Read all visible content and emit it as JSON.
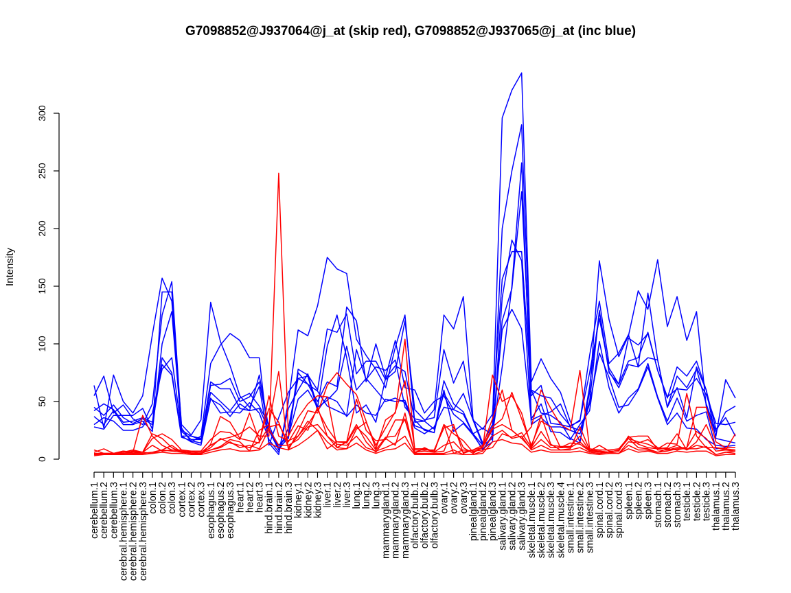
{
  "chart_data": {
    "type": "line",
    "title": "G7098852@J937064@j_at (skip red), G7098852@J937065@j_at (inc blue)",
    "xlabel": "",
    "ylabel": "Intensity",
    "ylim": [
      0,
      300
    ],
    "yticks": [
      0,
      50,
      100,
      150,
      200,
      250,
      300
    ],
    "grid": false,
    "legend": "none",
    "colors": {
      "skip": "#ff0000",
      "inc": "#0000ff"
    },
    "categories": [
      "cerebellum.1",
      "cerebellum.2",
      "cerebellum.3",
      "cerebral.hemisphere.1",
      "cerebral.hemisphere.2",
      "cerebral.hemisphere.3",
      "colon.1",
      "colon.2",
      "colon.3",
      "cortex.1",
      "cortex.2",
      "cortex.3",
      "esophagus.1",
      "esophagus.2",
      "esophagus.3",
      "heart.1",
      "heart.2",
      "heart.3",
      "hind.brain.1",
      "hind.brain.2",
      "hind.brain.3",
      "kidney.1",
      "kidney.2",
      "kidney.3",
      "liver.1",
      "liver.2",
      "liver.3",
      "lung.1",
      "lung.2",
      "lung.3",
      "mammarygland.1",
      "mammarygland.2",
      "mammarygland.3",
      "olfactory.bulb.1",
      "olfactory.bulb.2",
      "olfactory.bulb.3",
      "ovary.1",
      "ovary.2",
      "ovary.3",
      "pinealgland.1",
      "pinealgland.2",
      "pinealgland.3",
      "salivary.gland.1",
      "salivary.gland.2",
      "salivary.gland.3",
      "skeletal.muscle.1",
      "skeletal.muscle.2",
      "skeletal.muscle.3",
      "skeletal.muscle.4",
      "small.intestine.1",
      "small.intestine.2",
      "small.intestine.3",
      "spinal.cord.1",
      "spinal.cord.2",
      "spinal.cord.3",
      "spleen.1",
      "spleen.2",
      "spleen.3",
      "stomach.1",
      "stomach.2",
      "stomach.3",
      "testicle.1",
      "testicle.2",
      "testicle.3",
      "thalamus.1",
      "thalamus.2",
      "thalamus.3"
    ],
    "series": [
      {
        "group": "inc",
        "values": [
          64,
          27,
          73,
          50,
          40,
          55,
          108,
          157,
          137,
          30,
          21,
          34,
          136,
          102,
          81,
          55,
          45,
          63,
          14,
          4,
          50,
          112,
          107,
          133,
          175,
          165,
          161,
          104,
          90,
          78,
          62,
          97,
          125,
          32,
          33,
          43,
          125,
          113,
          141,
          35,
          14,
          30,
          296,
          320,
          335,
          67,
          87,
          70,
          58,
          33,
          15,
          58,
          172,
          121,
          89,
          107,
          146,
          130,
          173,
          115,
          141,
          103,
          128,
          46,
          20,
          69,
          53
        ]
      },
      {
        "group": "inc",
        "values": [
          55,
          72,
          40,
          47,
          35,
          30,
          48,
          125,
          154,
          27,
          15,
          20,
          83,
          99,
          109,
          103,
          88,
          88,
          12,
          36,
          58,
          70,
          65,
          50,
          67,
          63,
          132,
          120,
          67,
          100,
          71,
          103,
          62,
          60,
          40,
          50,
          55,
          39,
          32,
          22,
          27,
          21,
          200,
          250,
          290,
          60,
          55,
          53,
          39,
          29,
          33,
          90,
          137,
          83,
          92,
          108,
          80,
          144,
          86,
          45,
          62,
          36,
          80,
          60,
          26,
          36,
          20
        ]
      },
      {
        "group": "inc",
        "values": [
          28,
          26,
          38,
          38,
          38,
          44,
          26,
          145,
          145,
          20,
          20,
          18,
          64,
          65,
          70,
          50,
          54,
          67,
          26,
          12,
          20,
          78,
          73,
          60,
          113,
          110,
          126,
          74,
          85,
          85,
          69,
          76,
          120,
          43,
          34,
          36,
          95,
          66,
          85,
          34,
          26,
          39,
          156,
          180,
          180,
          55,
          64,
          31,
          30,
          28,
          34,
          75,
          122,
          79,
          65,
          105,
          99,
          109,
          77,
          53,
          80,
          72,
          85,
          60,
          18,
          16,
          14
        ]
      },
      {
        "group": "inc",
        "values": [
          37,
          30,
          42,
          30,
          30,
          33,
          24,
          100,
          128,
          25,
          20,
          17,
          67,
          61,
          61,
          44,
          42,
          73,
          26,
          10,
          18,
          75,
          65,
          59,
          46,
          42,
          38,
          95,
          69,
          80,
          77,
          86,
          45,
          35,
          33,
          26,
          57,
          43,
          57,
          34,
          12,
          18,
          120,
          148,
          232,
          60,
          40,
          38,
          32,
          18,
          14,
          63,
          128,
          75,
          65,
          85,
          88,
          110,
          77,
          54,
          61,
          60,
          70,
          56,
          31,
          30,
          32
        ]
      },
      {
        "group": "inc",
        "values": [
          30,
          36,
          33,
          25,
          25,
          28,
          40,
          78,
          88,
          24,
          17,
          17,
          58,
          50,
          42,
          53,
          57,
          46,
          30,
          8,
          20,
          52,
          60,
          45,
          98,
          125,
          88,
          40,
          47,
          32,
          70,
          81,
          76,
          34,
          25,
          23,
          68,
          48,
          41,
          22,
          12,
          25,
          112,
          130,
          113,
          34,
          38,
          41,
          48,
          28,
          25,
          50,
          129,
          76,
          62,
          82,
          80,
          88,
          86,
          45,
          72,
          62,
          78,
          48,
          24,
          41,
          46
        ]
      },
      {
        "group": "inc",
        "values": [
          42,
          48,
          43,
          32,
          33,
          36,
          32,
          88,
          75,
          20,
          15,
          12,
          52,
          47,
          37,
          48,
          42,
          44,
          25,
          8,
          27,
          70,
          72,
          42,
          54,
          50,
          37,
          47,
          40,
          38,
          52,
          50,
          51,
          29,
          26,
          23,
          60,
          24,
          31,
          21,
          9,
          15,
          140,
          190,
          172,
          30,
          36,
          28,
          28,
          25,
          22,
          48,
          92,
          71,
          45,
          47,
          60,
          80,
          53,
          30,
          40,
          27,
          26,
          17,
          12,
          11,
          12
        ]
      },
      {
        "group": "inc",
        "values": [
          45,
          38,
          47,
          36,
          31,
          35,
          30,
          82,
          73,
          19,
          16,
          14,
          53,
          40,
          41,
          40,
          49,
          40,
          17,
          6,
          44,
          60,
          74,
          45,
          51,
          60,
          98,
          60,
          70,
          60,
          50,
          53,
          49,
          27,
          22,
          28,
          45,
          43,
          39,
          22,
          8,
          21,
          80,
          150,
          257,
          35,
          48,
          24,
          23,
          17,
          30,
          42,
          102,
          62,
          40,
          53,
          61,
          83,
          54,
          33,
          53,
          33,
          38,
          41,
          9,
          10,
          10
        ]
      },
      {
        "group": "skip",
        "values": [
          6,
          9,
          5,
          7,
          6,
          38,
          20,
          12,
          8,
          7,
          6,
          6,
          12,
          17,
          19,
          22,
          28,
          20,
          20,
          248,
          20,
          36,
          48,
          55,
          54,
          10,
          9,
          26,
          32,
          12,
          27,
          41,
          68,
          9,
          9,
          7,
          30,
          22,
          16,
          6,
          10,
          26,
          30,
          25,
          18,
          28,
          60,
          44,
          30,
          25,
          77,
          9,
          8,
          8,
          9,
          19,
          20,
          20,
          8,
          8,
          10,
          10,
          45,
          45,
          15,
          10,
          10
        ]
      },
      {
        "group": "skip",
        "values": [
          8,
          5,
          5,
          5,
          6,
          6,
          18,
          22,
          17,
          8,
          5,
          5,
          8,
          11,
          17,
          15,
          7,
          25,
          30,
          76,
          8,
          24,
          42,
          40,
          64,
          75,
          65,
          56,
          33,
          9,
          34,
          40,
          104,
          8,
          8,
          8,
          27,
          30,
          5,
          8,
          10,
          73,
          50,
          55,
          40,
          10,
          38,
          13,
          8,
          9,
          28,
          8,
          7,
          6,
          8,
          18,
          15,
          13,
          9,
          10,
          22,
          8,
          15,
          30,
          10,
          8,
          22
        ]
      },
      {
        "group": "skip",
        "values": [
          5,
          5,
          5,
          6,
          8,
          6,
          22,
          18,
          10,
          6,
          7,
          4,
          13,
          37,
          32,
          18,
          16,
          14,
          55,
          20,
          16,
          20,
          33,
          25,
          9,
          15,
          15,
          52,
          25,
          16,
          17,
          34,
          34,
          6,
          9,
          6,
          7,
          28,
          10,
          5,
          11,
          28,
          35,
          58,
          35,
          12,
          33,
          28,
          10,
          14,
          13,
          7,
          12,
          7,
          7,
          20,
          13,
          10,
          9,
          14,
          13,
          57,
          20,
          10,
          10,
          9,
          8
        ]
      },
      {
        "group": "skip",
        "values": [
          4,
          5,
          5,
          5,
          7,
          6,
          12,
          7,
          8,
          8,
          7,
          7,
          17,
          24,
          23,
          17,
          40,
          16,
          44,
          32,
          10,
          20,
          30,
          43,
          27,
          15,
          14,
          28,
          20,
          8,
          19,
          20,
          35,
          6,
          7,
          6,
          30,
          5,
          8,
          7,
          8,
          10,
          22,
          19,
          23,
          10,
          24,
          12,
          11,
          11,
          20,
          7,
          6,
          6,
          5,
          15,
          14,
          17,
          10,
          9,
          8,
          10,
          24,
          18,
          7,
          8,
          7
        ]
      },
      {
        "group": "skip",
        "values": [
          5,
          5,
          5,
          7,
          5,
          6,
          5,
          8,
          12,
          6,
          5,
          5,
          10,
          18,
          14,
          12,
          10,
          15,
          28,
          30,
          15,
          29,
          25,
          45,
          20,
          10,
          15,
          30,
          15,
          6,
          18,
          12,
          40,
          5,
          10,
          6,
          12,
          15,
          6,
          8,
          12,
          35,
          60,
          25,
          18,
          9,
          17,
          10,
          10,
          10,
          15,
          7,
          7,
          6,
          8,
          18,
          10,
          9,
          6,
          9,
          12,
          8,
          12,
          10,
          4,
          6,
          7
        ]
      },
      {
        "group": "skip",
        "values": [
          4,
          4,
          5,
          5,
          5,
          5,
          6,
          8,
          7,
          6,
          5,
          5,
          8,
          10,
          15,
          10,
          12,
          9,
          26,
          12,
          12,
          17,
          28,
          30,
          20,
          13,
          12,
          20,
          10,
          7,
          10,
          14,
          20,
          5,
          5,
          5,
          5,
          8,
          4,
          4,
          7,
          20,
          25,
          18,
          20,
          8,
          12,
          8,
          8,
          8,
          10,
          6,
          5,
          6,
          5,
          12,
          8,
          8,
          6,
          7,
          9,
          9,
          9,
          11,
          4,
          6,
          5
        ]
      },
      {
        "group": "skip",
        "values": [
          3,
          4,
          4,
          4,
          4,
          4,
          5,
          6,
          5,
          5,
          4,
          4,
          6,
          8,
          9,
          7,
          7,
          8,
          14,
          10,
          8,
          12,
          18,
          25,
          15,
          8,
          9,
          14,
          8,
          5,
          8,
          9,
          14,
          4,
          4,
          4,
          4,
          5,
          4,
          4,
          5,
          15,
          17,
          14,
          13,
          6,
          8,
          6,
          6,
          6,
          7,
          5,
          4,
          5,
          5,
          9,
          6,
          7,
          5,
          5,
          7,
          6,
          7,
          7,
          3,
          4,
          4
        ]
      }
    ]
  }
}
